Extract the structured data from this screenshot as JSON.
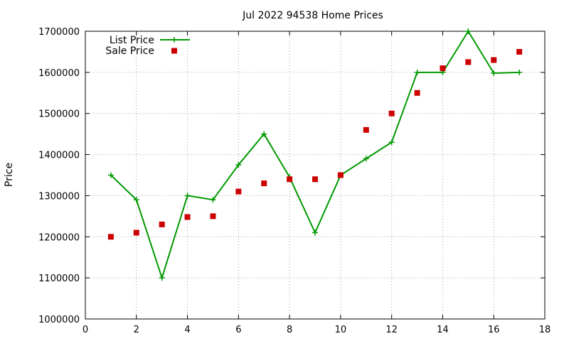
{
  "chart_data": {
    "type": "line",
    "title": "Jul 2022 94538 Home Prices",
    "xlabel": "",
    "ylabel": "Price",
    "xlim": [
      0,
      18
    ],
    "ylim": [
      1000000,
      1700000
    ],
    "x_ticks": [
      0,
      2,
      4,
      6,
      8,
      10,
      12,
      14,
      16,
      18
    ],
    "y_ticks": [
      1000000,
      1100000,
      1200000,
      1300000,
      1400000,
      1500000,
      1600000,
      1700000
    ],
    "grid": true,
    "legend_position": "top-left",
    "series": [
      {
        "name": "List Price",
        "style": "line-plus-markers",
        "color": "#009900",
        "points": [
          {
            "x": 1,
            "y": 1350000
          },
          {
            "x": 2,
            "y": 1290000
          },
          {
            "x": 3,
            "y": 1100000
          },
          {
            "x": 4,
            "y": 1300000
          },
          {
            "x": 5,
            "y": 1290000
          },
          {
            "x": 6,
            "y": 1375000
          },
          {
            "x": 7,
            "y": 1450000
          },
          {
            "x": 8,
            "y": 1345000
          },
          {
            "x": 9,
            "y": 1210000
          },
          {
            "x": 10,
            "y": 1350000
          },
          {
            "x": 11,
            "y": 1390000
          },
          {
            "x": 12,
            "y": 1430000
          },
          {
            "x": 13,
            "y": 1600000
          },
          {
            "x": 14,
            "y": 1600000
          },
          {
            "x": 15,
            "y": 1700000
          },
          {
            "x": 16,
            "y": 1598000
          },
          {
            "x": 17,
            "y": 1600000
          }
        ]
      },
      {
        "name": "Sale Price",
        "style": "square-markers",
        "color": "#cc0000",
        "points": [
          {
            "x": 1,
            "y": 1200000
          },
          {
            "x": 2,
            "y": 1210000
          },
          {
            "x": 3,
            "y": 1230000
          },
          {
            "x": 4,
            "y": 1248000
          },
          {
            "x": 5,
            "y": 1250000
          },
          {
            "x": 6,
            "y": 1310000
          },
          {
            "x": 7,
            "y": 1330000
          },
          {
            "x": 8,
            "y": 1340000
          },
          {
            "x": 9,
            "y": 1340000
          },
          {
            "x": 10,
            "y": 1350000
          },
          {
            "x": 11,
            "y": 1460000
          },
          {
            "x": 12,
            "y": 1500000
          },
          {
            "x": 13,
            "y": 1550000
          },
          {
            "x": 14,
            "y": 1610000
          },
          {
            "x": 15,
            "y": 1625000
          },
          {
            "x": 16,
            "y": 1630000
          },
          {
            "x": 17,
            "y": 1650000
          }
        ]
      }
    ]
  }
}
